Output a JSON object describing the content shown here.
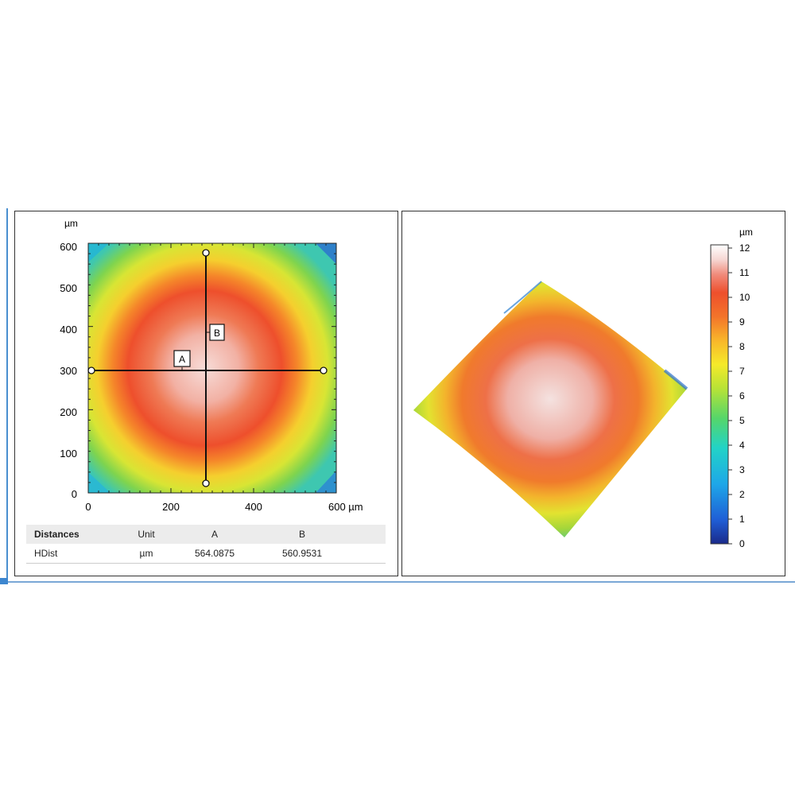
{
  "map": {
    "unit": "µm",
    "x_ticks": [
      "0",
      "200",
      "400",
      "600 µm"
    ],
    "y_ticks": [
      "600",
      "500",
      "400",
      "300",
      "200",
      "100",
      "0"
    ],
    "x_range": [
      0,
      600
    ],
    "y_range": [
      0,
      600
    ],
    "line_labels": [
      "A",
      "B"
    ]
  },
  "table": {
    "headers": [
      "Distances",
      "Unit",
      "A",
      "B"
    ],
    "rows": [
      [
        "HDist",
        "µm",
        "564.0875",
        "560.9531"
      ]
    ]
  },
  "colorbar": {
    "unit": "µm",
    "ticks": [
      "12",
      "11",
      "10",
      "9",
      "8",
      "7",
      "6",
      "5",
      "4",
      "3",
      "2",
      "1",
      "0"
    ],
    "range": [
      0,
      12
    ],
    "colors": [
      "#1a2a8a",
      "#1f5ed6",
      "#1ea7e8",
      "#22d3c7",
      "#55d66a",
      "#b8e336",
      "#f5ea2a",
      "#f8b62a",
      "#f3742a",
      "#ee4f2c",
      "#f08a7a",
      "#f6d6d2",
      "#ffffff"
    ]
  }
}
